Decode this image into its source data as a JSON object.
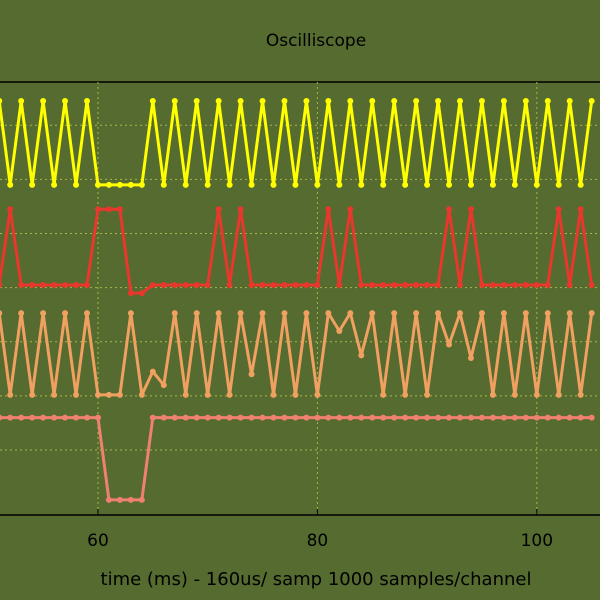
{
  "chart_data": {
    "type": "line",
    "title": "Oscilliscope",
    "xlabel": "time (ms) - 160us/ samp 1000 samples/channel",
    "x": [
      51,
      52,
      53,
      54,
      55,
      56,
      57,
      58,
      59,
      60,
      61,
      62,
      63,
      64,
      65,
      66,
      67,
      68,
      69,
      70,
      71,
      72,
      73,
      74,
      75,
      76,
      77,
      78,
      79,
      80,
      81,
      82,
      83,
      84,
      85,
      86,
      87,
      88,
      89,
      90,
      91,
      92,
      93,
      94,
      95,
      96,
      97,
      98,
      99,
      100,
      101,
      102,
      103,
      104,
      105
    ],
    "xlim": [
      51.07,
      105.76
    ],
    "xticks": [
      60,
      80,
      100
    ],
    "ylim": [
      -0.2,
      7.8
    ],
    "yticks": [
      1,
      2,
      3,
      4,
      5,
      6,
      7
    ],
    "grid": true,
    "series": [
      {
        "color": "#ffff00",
        "values": [
          7.45,
          5.9,
          7.45,
          5.9,
          7.45,
          5.9,
          7.45,
          5.9,
          7.45,
          5.9,
          5.9,
          5.9,
          5.9,
          5.9,
          7.45,
          5.9,
          7.45,
          5.9,
          7.45,
          5.9,
          7.45,
          5.9,
          7.45,
          5.9,
          7.45,
          5.9,
          7.45,
          5.9,
          7.45,
          5.9,
          7.45,
          5.9,
          7.45,
          5.9,
          7.45,
          5.9,
          7.45,
          5.9,
          7.45,
          5.9,
          7.45,
          5.9,
          7.45,
          5.9,
          7.45,
          5.9,
          7.45,
          5.9,
          7.45,
          5.9,
          7.45,
          5.9,
          7.45,
          5.9,
          7.45
        ]
      },
      {
        "color": "#e8372c",
        "values": [
          4.05,
          5.45,
          4.05,
          4.05,
          4.05,
          4.05,
          4.05,
          4.05,
          4.05,
          5.45,
          5.45,
          5.45,
          3.9,
          3.9,
          4.05,
          4.05,
          4.05,
          4.05,
          4.05,
          4.05,
          5.45,
          4.05,
          5.45,
          4.05,
          4.05,
          4.05,
          4.05,
          4.05,
          4.05,
          4.05,
          5.45,
          4.05,
          5.45,
          4.05,
          4.05,
          4.05,
          4.05,
          4.05,
          4.05,
          4.05,
          4.05,
          5.45,
          4.05,
          5.45,
          4.05,
          4.05,
          4.05,
          4.05,
          4.05,
          4.05,
          4.05,
          5.45,
          4.05,
          5.45,
          4.05
        ]
      },
      {
        "color": "#f0a060",
        "values": [
          3.53,
          2.02,
          3.53,
          2.02,
          3.53,
          2.02,
          3.53,
          2.02,
          3.53,
          2.02,
          2.02,
          2.02,
          3.53,
          2.02,
          2.45,
          2.2,
          3.53,
          2.02,
          3.53,
          2.02,
          3.53,
          2.02,
          3.53,
          2.4,
          3.53,
          2.02,
          3.53,
          2.02,
          3.53,
          2.02,
          3.53,
          3.2,
          3.53,
          2.75,
          3.53,
          2.02,
          3.53,
          2.02,
          3.53,
          2.02,
          3.53,
          2.95,
          3.53,
          2.7,
          3.53,
          2.02,
          3.53,
          2.02,
          3.53,
          2.02,
          3.53,
          2.02,
          3.53,
          2.02,
          3.53
        ]
      },
      {
        "color": "#f08070",
        "values": [
          1.6,
          1.6,
          1.6,
          1.6,
          1.6,
          1.6,
          1.6,
          1.6,
          1.6,
          1.6,
          0.08,
          0.08,
          0.08,
          0.08,
          1.6,
          1.6,
          1.6,
          1.6,
          1.6,
          1.6,
          1.6,
          1.6,
          1.6,
          1.6,
          1.6,
          1.6,
          1.6,
          1.6,
          1.6,
          1.6,
          1.6,
          1.6,
          1.6,
          1.6,
          1.6,
          1.6,
          1.6,
          1.6,
          1.6,
          1.6,
          1.6,
          1.6,
          1.6,
          1.6,
          1.6,
          1.6,
          1.6,
          1.6,
          1.6,
          1.6,
          1.6,
          1.6,
          1.6,
          1.6,
          1.6
        ]
      }
    ]
  }
}
